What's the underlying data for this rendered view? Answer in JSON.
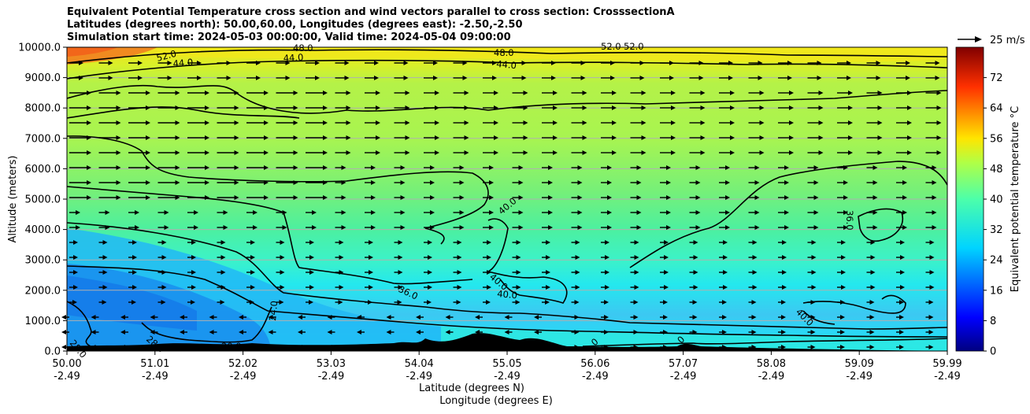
{
  "chart_data": {
    "type": "heatmap",
    "title_lines": [
      "Equivalent Potential Temperature cross section and wind vectors parallel to cross section: CrosssectionA",
      "Latitudes (degrees north): 50.00,60.00, Longitudes (degrees east): -2.50,-2.50",
      "Simulation start time: 2024-05-03 00:00:00, Valid time: 2024-05-04 09:00:00"
    ],
    "ylabel": "Altitude (meters)",
    "xlabel_lines": [
      "Latitude (degrees N)",
      "Longitude (degrees E)"
    ],
    "ylim": [
      0,
      10000
    ],
    "yticks": [
      "0.0",
      "1000.0",
      "2000.0",
      "3000.0",
      "4000.0",
      "5000.0",
      "6000.0",
      "7000.0",
      "8000.0",
      "9000.0",
      "10000.0"
    ],
    "xticks_lat": [
      "50.00",
      "51.01",
      "52.02",
      "53.03",
      "54.04",
      "55.05",
      "56.06",
      "57.07",
      "58.08",
      "59.09",
      "59.99"
    ],
    "xticks_lon": [
      "-2.49",
      "-2.49",
      "-2.49",
      "-2.49",
      "-2.49",
      "-2.49",
      "-2.49",
      "-2.49",
      "-2.49",
      "-2.49",
      "-2.49"
    ],
    "grid": "horizontal",
    "colorbar": {
      "label": "Equivalent potential temperature $^\\circ$C",
      "range": [
        0,
        80
      ],
      "ticks": [
        "0",
        "8",
        "16",
        "24",
        "32",
        "40",
        "48",
        "56",
        "64",
        "72"
      ]
    },
    "quiver_key_label": "25 m/s",
    "contour_labels": [
      "52.0",
      "48.0",
      "44.0",
      "44.0",
      "48.0",
      "44.0",
      "52.0",
      "52.0",
      "40.0",
      "40.0",
      "40.0",
      "36.0",
      "36.0",
      "40.0",
      "24.0",
      "28.0",
      "28.0",
      "20.0",
      "0",
      "0"
    ],
    "field_bands_degC": [
      {
        "top_m": 10000,
        "value": 52
      },
      {
        "top_m": 9600,
        "value": 44
      },
      {
        "top_m": 7000,
        "value": 42
      },
      {
        "top_m": 5400,
        "value": 38
      },
      {
        "top_m": 4200,
        "value": 34
      },
      {
        "top_m": 3400,
        "value": 30
      },
      {
        "top_m": 2700,
        "value": 27
      },
      {
        "top_m": 1500,
        "value": 25
      },
      {
        "top_m": 500,
        "value": 30
      }
    ]
  }
}
